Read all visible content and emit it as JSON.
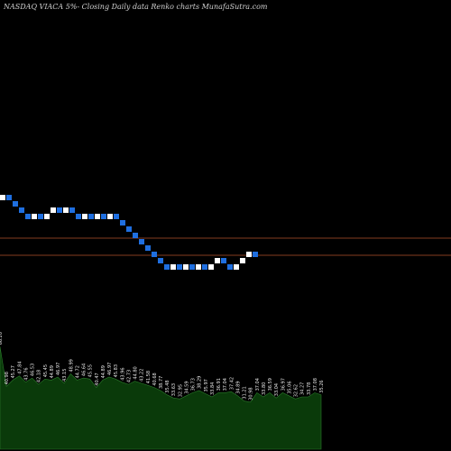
{
  "chart_data": {
    "type": "renko",
    "title": "NASDAQ VIACA 5%-  Closing Daily data Renko charts MunafaSutra.com",
    "colors": {
      "background": "#000000",
      "up_brick": "#ffffff",
      "down_brick": "#1f6fe0",
      "reference_line": "#b0522a",
      "volume_fill": "#0a3a0a",
      "volume_edge": "#2a7a2a",
      "label": "#e8e8e8"
    },
    "bricks": [
      "up",
      "down",
      "down",
      "down",
      "down",
      "up",
      "down",
      "up",
      "up",
      "down",
      "up",
      "down",
      "down",
      "up",
      "down",
      "up",
      "down",
      "up",
      "down",
      "down",
      "down",
      "down",
      "down",
      "down",
      "down",
      "down",
      "down",
      "up",
      "down",
      "up",
      "down",
      "up",
      "down",
      "up",
      "up",
      "down",
      "down",
      "up",
      "up",
      "up",
      "down"
    ],
    "volume_labels": [
      "66.20",
      "40.98",
      "45.27",
      "47.84",
      "43.76",
      "46.53",
      "42.18",
      "45.45",
      "44.89",
      "46.97",
      "43.15",
      "48.99",
      "44.72",
      "46.64",
      "45.55",
      "40.47",
      "44.89",
      "46.97",
      "45.83",
      "43.96",
      "42.73",
      "44.80",
      "43.22",
      "41.58",
      "40.68",
      "38.77",
      "35.48",
      "33.63",
      "32.95",
      "34.59",
      "36.73",
      "38.29",
      "35.97",
      "33.84",
      "36.91",
      "37.04",
      "37.42",
      "34.89",
      "31.21",
      "30.98",
      "37.04",
      "33.80",
      "36.59",
      "33.04",
      "36.97",
      "35.06",
      "32.62",
      "34.27",
      "33.78",
      "37.08",
      "35.26"
    ],
    "volume_values": [
      98,
      60,
      66,
      70,
      64,
      68,
      62,
      67,
      66,
      69,
      63,
      72,
      66,
      68,
      67,
      59,
      66,
      69,
      67,
      64,
      62,
      65,
      63,
      61,
      59,
      56,
      52,
      49,
      48,
      51,
      54,
      56,
      53,
      50,
      54,
      54,
      55,
      51,
      46,
      45,
      54,
      50,
      54,
      49,
      54,
      51,
      48,
      50,
      50,
      54,
      52
    ]
  }
}
